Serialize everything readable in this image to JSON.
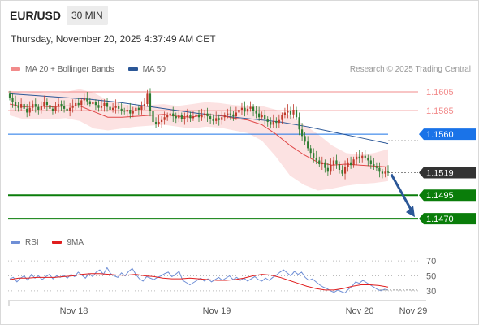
{
  "header": {
    "symbol": "EUR/USD",
    "timeframe": "30 MIN",
    "datetime": "Thursday, November 20, 2025 4:37:49 AM CET"
  },
  "legend": {
    "items": [
      {
        "label": "MA 20 + Bollinger Bands",
        "color": "#f28b8b"
      },
      {
        "label": "MA 50",
        "color": "#2b5797"
      }
    ],
    "credit": "Research © 2025 Trading Central"
  },
  "indicator_legend": {
    "items": [
      {
        "label": "RSI",
        "color": "#6f8fd6"
      },
      {
        "label": "9MA",
        "color": "#e01e1e"
      }
    ]
  },
  "colors": {
    "resistance": "#f28b8b",
    "pivot": "#1a73e8",
    "support": "#0a7d0a",
    "current": "#333333",
    "arrow": "#2b5797",
    "bollinger_fill": "#fbd8d8",
    "ma20": "#e04848",
    "ma50": "#2b5797",
    "candle_up": "#c0392b",
    "candle_down": "#2e7d32",
    "rsi": "#6f8fd6",
    "rsi_ma": "#e01e1e"
  },
  "chart_data": [
    {
      "type": "candlestick",
      "x_ticks": [
        "Nov 18",
        "Nov 19",
        "Nov 20",
        "Nov 29"
      ],
      "ylim": [
        1.1458,
        1.1618
      ],
      "levels": [
        {
          "value": 1.1605,
          "label": "1.1605",
          "kind": "resistance"
        },
        {
          "value": 1.1585,
          "label": "1.1585",
          "kind": "resistance"
        },
        {
          "value": 1.156,
          "label": "1.1560",
          "kind": "pivot"
        },
        {
          "value": 1.1519,
          "label": "1.1519",
          "kind": "current"
        },
        {
          "value": 1.1495,
          "label": "1.1495",
          "kind": "support"
        },
        {
          "value": 1.147,
          "label": "1.1470",
          "kind": "support"
        }
      ],
      "close": [
        1.1599,
        1.1594,
        1.159,
        1.1588,
        1.1592,
        1.1587,
        1.1583,
        1.1588,
        1.1592,
        1.1589,
        1.1586,
        1.159,
        1.1594,
        1.1591,
        1.1587,
        1.1585,
        1.1589,
        1.1592,
        1.159,
        1.1587,
        1.1585,
        1.1588,
        1.159,
        1.1593,
        1.1591,
        1.1596,
        1.1598,
        1.1595,
        1.1592,
        1.1594,
        1.1591,
        1.1588,
        1.159,
        1.1593,
        1.1589,
        1.1586,
        1.1588,
        1.159,
        1.1587,
        1.1585,
        1.1584,
        1.1586,
        1.1582,
        1.1585,
        1.1588,
        1.1586,
        1.159,
        1.1592,
        1.1603,
        1.1585,
        1.1573,
        1.1571,
        1.1573,
        1.1575,
        1.1578,
        1.158,
        1.1582,
        1.1579,
        1.1577,
        1.158,
        1.1576,
        1.1578,
        1.158,
        1.1577,
        1.1579,
        1.1581,
        1.1578,
        1.158,
        1.1582,
        1.1579,
        1.1576,
        1.1574,
        1.1577,
        1.1575,
        1.1578,
        1.158,
        1.1582,
        1.1581,
        1.1579,
        1.1583,
        1.1586,
        1.1588,
        1.1584,
        1.1587,
        1.1589,
        1.1585,
        1.1582,
        1.1578,
        1.158,
        1.1576,
        1.1573,
        1.157,
        1.1574,
        1.1572,
        1.1575,
        1.158,
        1.1583,
        1.1585,
        1.1581,
        1.1586,
        1.1578,
        1.1565,
        1.1558,
        1.1552,
        1.1545,
        1.154,
        1.1535,
        1.1532,
        1.1528,
        1.153,
        1.1524,
        1.152,
        1.1527,
        1.1532,
        1.1528,
        1.1522,
        1.1518,
        1.1525,
        1.153,
        1.1527,
        1.1533,
        1.1536,
        1.1534,
        1.1537,
        1.1535,
        1.1532,
        1.1528,
        1.1526,
        1.1524,
        1.152,
        1.1518,
        1.152,
        1.1519
      ],
      "ma50": [
        1.1603,
        1.1601,
        1.1599,
        1.1597,
        1.1594,
        1.159,
        1.1586,
        1.1582,
        1.1579,
        1.1576,
        1.1573,
        1.1568,
        1.1562,
        1.1556,
        1.155
      ],
      "ma20": [
        1.1592,
        1.1589,
        1.159,
        1.1589,
        1.159,
        1.159,
        1.1584,
        1.1578,
        1.1578,
        1.1579,
        1.158,
        1.1581,
        1.1579,
        1.1578,
        1.1581,
        1.158,
        1.1577,
        1.1575,
        1.157,
        1.156,
        1.1548,
        1.1538,
        1.153,
        1.1527,
        1.1528,
        1.1527,
        1.1526,
        1.1525
      ],
      "boll_upper": [
        1.1606,
        1.1604,
        1.1605,
        1.1603,
        1.1605,
        1.1608,
        1.1604,
        1.1596,
        1.1592,
        1.159,
        1.1591,
        1.1592,
        1.159,
        1.1592,
        1.1594,
        1.1593,
        1.1591,
        1.159,
        1.159,
        1.1586,
        1.158,
        1.157,
        1.156,
        1.1548,
        1.154,
        1.1538,
        1.154,
        1.1544
      ],
      "boll_lower": [
        1.158,
        1.1576,
        1.1576,
        1.1576,
        1.1577,
        1.1574,
        1.1566,
        1.1564,
        1.1566,
        1.1568,
        1.1569,
        1.157,
        1.1568,
        1.1566,
        1.1568,
        1.1567,
        1.1564,
        1.1561,
        1.1553,
        1.1536,
        1.1516,
        1.1506,
        1.15,
        1.1502,
        1.1505,
        1.1507,
        1.1508,
        1.151
      ],
      "projection": {
        "from": 1.1519,
        "to": 1.147
      }
    },
    {
      "type": "line",
      "name": "RSI",
      "ylim": [
        20,
        80
      ],
      "y_ticks": [
        "70",
        "50",
        "30"
      ],
      "y_tick_values": [
        70,
        50,
        30
      ],
      "rsi": [
        46,
        48,
        42,
        47,
        50,
        44,
        52,
        47,
        50,
        45,
        49,
        52,
        46,
        50,
        48,
        51,
        47,
        52,
        49,
        55,
        51,
        47,
        53,
        49,
        55,
        58,
        52,
        61,
        53,
        50,
        48,
        54,
        50,
        56,
        60,
        52,
        46,
        43,
        49,
        47,
        45,
        48,
        50,
        53,
        55,
        49,
        52,
        56,
        44,
        41,
        38,
        41,
        44,
        47,
        43,
        46,
        42,
        45,
        48,
        44,
        47,
        50,
        45,
        48,
        44,
        47,
        43,
        46,
        49,
        45,
        43,
        47,
        44,
        48,
        51,
        55,
        58,
        54,
        50,
        56,
        52,
        55,
        48,
        44,
        46,
        42,
        38,
        35,
        33,
        30,
        28,
        31,
        29,
        27,
        32,
        36,
        42,
        40,
        44,
        41,
        38,
        35,
        32,
        30,
        32,
        31
      ],
      "rsi_ma": [
        45,
        47,
        47,
        48,
        48,
        48,
        49,
        50,
        52,
        53,
        53,
        52,
        51,
        51,
        52,
        50,
        49,
        47,
        46,
        46,
        47,
        46,
        45,
        44,
        44,
        45,
        47,
        50,
        52,
        51,
        48,
        44,
        40,
        36,
        33,
        31,
        31,
        33,
        36,
        38,
        38,
        37,
        35
      ]
    }
  ]
}
